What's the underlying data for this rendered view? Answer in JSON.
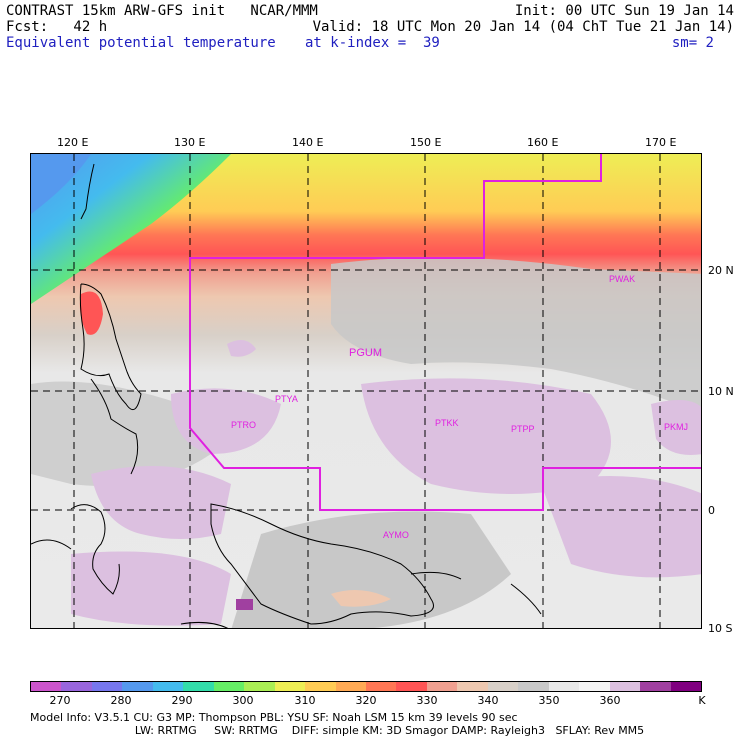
{
  "header": {
    "line1_left": "CONTRAST 15km ARW-GFS init   NCAR/MMM",
    "line1_right": "Init: 00 UTC Sun 19 Jan 14",
    "line2_left": "Fcst:   42 h",
    "line2_right": "Valid: 18 UTC Mon 20 Jan 14 (04 ChT Tue 21 Jan 14)",
    "field_name": "Equivalent potential temperature",
    "level_text": "at k-index =  39",
    "smoothing_text": "sm= 2"
  },
  "axes": {
    "lon_labels": [
      "120 E",
      "130 E",
      "140 E",
      "150 E",
      "160 E",
      "170 E"
    ],
    "lat_labels": [
      "20 N",
      "10 N",
      "0",
      "10 S"
    ]
  },
  "stations": [
    "PWAK",
    "PGUM",
    "PTYA",
    "PTRO",
    "PTKK",
    "PTPP",
    "PKMJ",
    "AYMO"
  ],
  "colors": {
    "boundary_line": "#e020e0",
    "station_label": "#e020e0",
    "bands": [
      "#cc55cc",
      "#9966dd",
      "#7777ee",
      "#5599ee",
      "#44bbee",
      "#33ddaa",
      "#66ee66",
      "#aaee55",
      "#eeee55",
      "#ffcc55",
      "#ffaa55",
      "#ff7755",
      "#ff5555",
      "#f0a090",
      "#eec8b0",
      "#d8d0c8",
      "#c8c8c8",
      "#e8e8e8",
      "#f4f4f4",
      "#dcc0e0",
      "#a040a0",
      "#800080"
    ]
  },
  "colorbar": {
    "labels": [
      "270",
      "280",
      "290",
      "300",
      "310",
      "320",
      "330",
      "340",
      "350",
      "360",
      "K"
    ]
  },
  "footer": {
    "line1": "Model Info: V3.5.1    CU: G3        MP: Thompson      PBL: YSU        SF: Noah LSM      15 km    39 levels    90 sec",
    "line2": "                              LW: RRTMG     SW: RRTMG    DIFF: simple KM: 3D Smagor DAMP: Rayleigh3   SFLAY: Rev MM5"
  }
}
